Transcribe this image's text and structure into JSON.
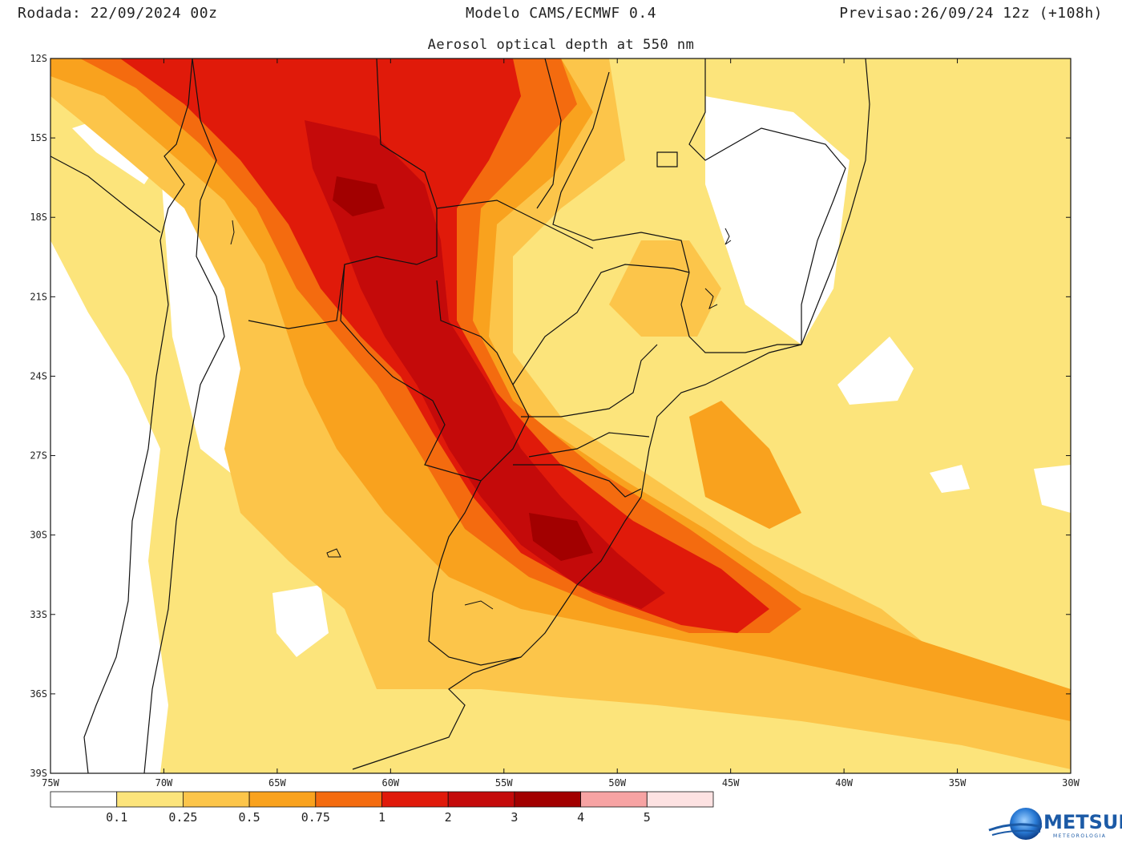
{
  "header": {
    "run": "Rodada: 22/09/2024 00z",
    "model": "Modelo CAMS/ECMWF 0.4",
    "valid": "Previsao:26/09/24 12z (+108h)",
    "subtitle": "Aerosol optical depth at 550 nm"
  },
  "map": {
    "projection": "lat-lon",
    "lon_range": [
      -75,
      -30
    ],
    "lat_range": [
      -39,
      -12
    ],
    "lat_ticks": [
      "12S",
      "15S",
      "18S",
      "21S",
      "24S",
      "27S",
      "30S",
      "33S",
      "36S",
      "39S"
    ],
    "lon_ticks": [
      "75W",
      "70W",
      "65W",
      "60W",
      "55W",
      "50W",
      "45W",
      "40W",
      "35W",
      "30W"
    ],
    "layers": [
      "coastlines",
      "country-borders",
      "state-borders",
      "lakes"
    ],
    "field": "aerosol optical depth 550 nm",
    "plume_description": "high values along 60W-50W corridor from central Brazil through Paraguay to southern Brazil and Atlantic"
  },
  "colorbar": {
    "boundaries": [
      "0.1",
      "0.25",
      "0.5",
      "0.75",
      "1",
      "2",
      "3",
      "4",
      "5"
    ],
    "colors": [
      "#ffffff",
      "#fce47b",
      "#fcc54a",
      "#f9a21e",
      "#f46b0f",
      "#e01a0a",
      "#c40a0a",
      "#a20000",
      "#f7a3a3",
      "#fde2e2"
    ]
  },
  "logo": {
    "brand": "METSUL",
    "sub": "METEOROLOGIA"
  }
}
